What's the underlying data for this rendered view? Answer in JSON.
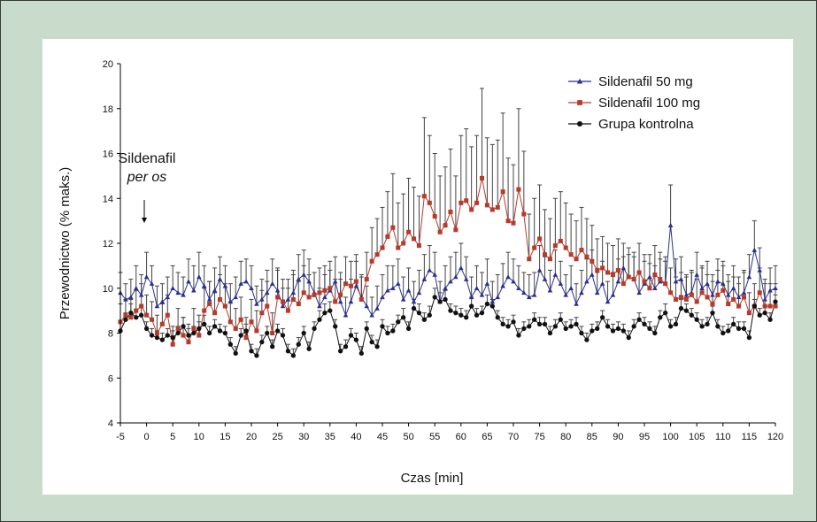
{
  "chart_data": {
    "type": "line",
    "title": "",
    "xlabel": "Czas [min]",
    "ylabel": "Przewodnictwo (% maks.)",
    "xlim": [
      -5,
      120
    ],
    "ylim": [
      4,
      20
    ],
    "x_ticks": [
      -5,
      0,
      5,
      10,
      15,
      20,
      25,
      30,
      35,
      40,
      45,
      50,
      55,
      60,
      65,
      70,
      75,
      80,
      85,
      90,
      95,
      100,
      105,
      110,
      115,
      120
    ],
    "y_ticks": [
      4,
      6,
      8,
      10,
      12,
      14,
      16,
      18,
      20
    ],
    "grid": false,
    "legend_position": "top-right",
    "annotation": {
      "line1": "Sildenafil",
      "line2": "per os",
      "x": 0
    },
    "x": [
      -5,
      -4,
      -3,
      -2,
      -1,
      0,
      1,
      2,
      3,
      4,
      5,
      6,
      7,
      8,
      9,
      10,
      11,
      12,
      13,
      14,
      15,
      16,
      17,
      18,
      19,
      20,
      21,
      22,
      23,
      24,
      25,
      26,
      27,
      28,
      29,
      30,
      31,
      32,
      33,
      34,
      35,
      36,
      37,
      38,
      39,
      40,
      41,
      42,
      43,
      44,
      45,
      46,
      47,
      48,
      49,
      50,
      51,
      52,
      53,
      54,
      55,
      56,
      57,
      58,
      59,
      60,
      61,
      62,
      63,
      64,
      65,
      66,
      67,
      68,
      69,
      70,
      71,
      72,
      73,
      74,
      75,
      76,
      77,
      78,
      79,
      80,
      81,
      82,
      83,
      84,
      85,
      86,
      87,
      88,
      89,
      90,
      91,
      92,
      93,
      94,
      95,
      96,
      97,
      98,
      99,
      100,
      101,
      102,
      103,
      104,
      105,
      106,
      107,
      108,
      109,
      110,
      111,
      112,
      113,
      114,
      115,
      116,
      117,
      118,
      119,
      120
    ],
    "series": [
      {
        "name": "Sildenafil 50 mg",
        "color": "#2b2f8f",
        "marker": "triangle",
        "values": [
          9.8,
          9.5,
          9.6,
          10.0,
          9.7,
          10.5,
          10.2,
          9.2,
          9.4,
          9.6,
          10.0,
          9.8,
          9.7,
          10.3,
          9.9,
          10.5,
          10.1,
          9.5,
          9.9,
          10.4,
          10.1,
          9.4,
          9.6,
          10.2,
          10.3,
          10.0,
          9.3,
          9.5,
          9.8,
          10.2,
          9.9,
          9.2,
          9.5,
          9.8,
          10.4,
          10.6,
          10.3,
          9.8,
          9.2,
          9.6,
          9.9,
          10.3,
          9.4,
          8.8,
          9.4,
          10.1,
          9.6,
          9.2,
          8.8,
          9.1,
          9.6,
          9.9,
          10.0,
          10.2,
          9.5,
          9.9,
          9.4,
          9.8,
          10.4,
          10.8,
          10.6,
          9.4,
          10.0,
          10.3,
          10.5,
          10.9,
          10.4,
          9.6,
          10.0,
          9.7,
          10.2,
          9.4,
          9.6,
          10.1,
          10.5,
          10.3,
          10.0,
          9.8,
          9.6,
          9.7,
          10.8,
          10.4,
          9.9,
          10.6,
          10.2,
          9.7,
          10.0,
          9.3,
          9.8,
          10.3,
          10.6,
          9.8,
          10.2,
          9.4,
          9.7,
          10.3,
          10.9,
          10.5,
          10.4,
          9.8,
          10.2,
          10.5,
          10.0,
          10.3,
          10.2,
          12.8,
          10.3,
          10.4,
          9.7,
          9.8,
          10.6,
          10.0,
          10.2,
          9.7,
          10.3,
          10.2,
          9.7,
          10.0,
          9.6,
          9.8,
          10.5,
          11.7,
          10.8,
          9.5,
          9.9,
          10.0
        ]
      },
      {
        "name": "Sildenafil 100 mg",
        "color": "#b83a2a",
        "marker": "square",
        "values": [
          8.5,
          8.8,
          8.7,
          9.0,
          9.2,
          8.8,
          8.6,
          8.0,
          8.4,
          8.8,
          7.5,
          8.2,
          7.9,
          7.6,
          8.2,
          7.9,
          9.0,
          9.3,
          8.9,
          9.5,
          9.2,
          8.5,
          8.2,
          8.6,
          7.8,
          8.5,
          8.1,
          8.9,
          9.2,
          8.0,
          9.6,
          9.4,
          9.0,
          9.5,
          9.3,
          9.8,
          9.6,
          9.7,
          9.8,
          9.9,
          10.0,
          9.4,
          9.7,
          10.2,
          10.1,
          10.3,
          9.5,
          10.4,
          11.2,
          11.5,
          11.8,
          12.3,
          12.7,
          11.8,
          12.0,
          12.5,
          12.2,
          11.9,
          14.1,
          13.8,
          13.2,
          12.5,
          12.8,
          13.4,
          12.6,
          13.8,
          13.9,
          13.5,
          13.8,
          14.9,
          13.7,
          13.5,
          13.6,
          14.3,
          13.0,
          12.9,
          14.4,
          13.3,
          11.3,
          11.8,
          12.2,
          11.5,
          11.3,
          11.9,
          12.1,
          11.8,
          11.5,
          11.3,
          11.7,
          11.4,
          11.2,
          10.8,
          10.9,
          10.7,
          10.6,
          10.8,
          10.2,
          10.5,
          10.4,
          10.7,
          10.3,
          10.0,
          10.6,
          10.4,
          10.2,
          9.8,
          9.5,
          9.6,
          9.5,
          9.7,
          9.4,
          9.8,
          9.6,
          9.3,
          9.7,
          9.9,
          9.3,
          9.5,
          9.2,
          9.6,
          8.9,
          9.2,
          9.8,
          9.2,
          9.2,
          9.2
        ]
      },
      {
        "name": "Grupa kontrolna",
        "color": "#111111",
        "marker": "circle",
        "values": [
          8.1,
          8.6,
          8.9,
          8.7,
          8.8,
          8.2,
          7.9,
          7.8,
          7.7,
          7.9,
          7.8,
          8.0,
          8.3,
          7.9,
          8.0,
          8.2,
          8.4,
          8.0,
          8.3,
          8.1,
          8.0,
          7.5,
          7.1,
          7.9,
          8.1,
          7.2,
          7.0,
          7.6,
          8.0,
          7.4,
          8.1,
          7.9,
          7.2,
          7.0,
          7.5,
          8.0,
          7.3,
          8.2,
          8.6,
          8.9,
          9.0,
          8.3,
          7.2,
          7.4,
          7.9,
          7.7,
          7.1,
          8.2,
          7.6,
          7.4,
          8.3,
          8.0,
          8.1,
          8.5,
          8.7,
          8.2,
          9.1,
          8.9,
          8.6,
          8.8,
          9.6,
          9.4,
          9.5,
          9.0,
          8.9,
          8.8,
          8.7,
          9.2,
          8.8,
          8.9,
          9.3,
          9.2,
          8.7,
          8.4,
          8.3,
          8.5,
          7.9,
          8.2,
          8.3,
          8.6,
          8.4,
          8.4,
          8.0,
          8.3,
          8.6,
          8.2,
          8.3,
          8.4,
          8.0,
          7.7,
          8.1,
          8.2,
          8.7,
          8.3,
          8.1,
          8.2,
          8.1,
          7.8,
          8.3,
          8.6,
          8.4,
          8.2,
          8.0,
          8.7,
          8.9,
          8.3,
          8.4,
          9.1,
          9.0,
          8.8,
          8.6,
          8.3,
          8.4,
          8.9,
          8.3,
          8.0,
          8.1,
          8.4,
          8.2,
          8.2,
          7.8,
          9.2,
          8.8,
          8.9,
          8.6,
          9.4
        ]
      }
    ],
    "error_bars": [
      [
        0.9,
        0.7,
        0.8,
        1.0,
        0.9,
        1.1,
        0.8,
        0.9,
        0.8,
        0.9,
        1.0,
        0.9,
        0.8,
        1.0,
        1.1,
        1.1,
        0.9,
        0.8,
        1.0,
        1.0,
        0.9,
        0.8,
        0.9,
        1.0,
        1.0,
        1.0,
        0.8,
        0.9,
        1.0,
        1.1,
        1.0,
        0.8,
        0.9,
        1.0,
        1.1,
        1.1,
        1.0,
        0.9,
        0.8,
        1.0,
        0.9,
        1.1,
        1.0,
        0.8,
        1.0,
        1.1,
        1.0,
        0.9,
        0.8,
        1.0,
        1.0,
        1.1,
        1.0,
        1.1,
        1.0,
        1.0,
        0.9,
        1.0,
        1.1,
        1.1,
        1.0,
        0.9,
        1.0,
        1.1,
        1.1,
        1.1,
        1.0,
        0.9,
        1.0,
        1.0,
        1.1,
        0.9,
        1.0,
        1.0,
        1.1,
        1.0,
        1.0,
        0.9,
        1.0,
        1.0,
        1.1,
        1.0,
        0.9,
        1.1,
        1.0,
        0.9,
        1.0,
        0.9,
        1.0,
        1.0,
        1.1,
        0.9,
        1.0,
        0.9,
        1.0,
        1.0,
        1.1,
        1.0,
        1.0,
        0.9,
        1.0,
        1.0,
        1.0,
        1.0,
        1.0,
        1.8,
        1.0,
        1.0,
        0.9,
        0.9,
        1.0,
        1.0,
        1.0,
        0.9,
        1.0,
        1.0,
        0.9,
        1.0,
        0.9,
        1.0,
        1.0,
        1.3,
        1.0,
        0.9,
        1.0,
        1.0
      ],
      [
        0.8,
        0.7,
        0.8,
        0.9,
        1.0,
        0.9,
        0.8,
        0.8,
        0.9,
        0.9,
        0.8,
        0.9,
        0.8,
        0.8,
        0.9,
        0.9,
        1.0,
        1.0,
        0.9,
        1.1,
        1.0,
        0.9,
        0.9,
        1.0,
        0.9,
        1.0,
        0.9,
        1.0,
        1.1,
        0.9,
        1.2,
        1.0,
        1.0,
        1.1,
        1.0,
        1.2,
        1.0,
        1.0,
        1.1,
        1.1,
        1.2,
        1.0,
        1.0,
        1.2,
        1.1,
        1.2,
        1.0,
        1.2,
        1.5,
        1.6,
        1.8,
        2.0,
        2.4,
        2.0,
        2.2,
        2.4,
        2.3,
        2.2,
        3.5,
        3.0,
        2.8,
        2.5,
        2.6,
        2.8,
        2.4,
        3.0,
        3.2,
        2.8,
        3.0,
        4.0,
        3.0,
        2.9,
        3.0,
        3.5,
        2.8,
        2.6,
        3.6,
        2.8,
        2.0,
        2.2,
        2.4,
        2.0,
        1.8,
        2.1,
        2.2,
        2.0,
        1.8,
        1.7,
        1.9,
        1.7,
        1.6,
        1.4,
        1.4,
        1.3,
        1.3,
        1.4,
        1.2,
        1.3,
        1.2,
        1.3,
        1.2,
        1.1,
        1.3,
        1.2,
        1.2,
        1.1,
        1.0,
        1.1,
        1.0,
        1.1,
        1.0,
        1.1,
        1.0,
        1.0,
        1.1,
        1.1,
        1.0,
        1.0,
        1.0,
        1.1,
        0.9,
        1.0,
        1.1,
        1.0,
        1.0,
        1.0
      ],
      [
        0.4,
        0.3,
        0.4,
        0.3,
        0.4,
        0.3,
        0.3,
        0.3,
        0.3,
        0.3,
        0.3,
        0.3,
        0.4,
        0.3,
        0.3,
        0.3,
        0.4,
        0.3,
        0.3,
        0.3,
        0.3,
        0.3,
        0.3,
        0.3,
        0.3,
        0.3,
        0.3,
        0.3,
        0.3,
        0.3,
        0.3,
        0.3,
        0.3,
        0.3,
        0.3,
        0.3,
        0.3,
        0.3,
        0.4,
        0.4,
        0.4,
        0.3,
        0.3,
        0.3,
        0.3,
        0.3,
        0.3,
        0.3,
        0.3,
        0.3,
        0.3,
        0.3,
        0.3,
        0.3,
        0.4,
        0.3,
        0.4,
        0.4,
        0.3,
        0.4,
        0.4,
        0.4,
        0.4,
        0.3,
        0.3,
        0.3,
        0.3,
        0.4,
        0.3,
        0.3,
        0.4,
        0.3,
        0.3,
        0.3,
        0.3,
        0.3,
        0.3,
        0.3,
        0.3,
        0.3,
        0.3,
        0.3,
        0.3,
        0.3,
        0.3,
        0.3,
        0.3,
        0.3,
        0.3,
        0.3,
        0.3,
        0.3,
        0.3,
        0.3,
        0.3,
        0.3,
        0.3,
        0.3,
        0.3,
        0.3,
        0.3,
        0.3,
        0.3,
        0.3,
        0.4,
        0.3,
        0.3,
        0.4,
        0.3,
        0.3,
        0.3,
        0.3,
        0.3,
        0.3,
        0.3,
        0.3,
        0.3,
        0.3,
        0.3,
        0.3,
        0.3,
        0.3,
        0.3,
        0.3,
        0.3,
        0.3
      ]
    ]
  }
}
